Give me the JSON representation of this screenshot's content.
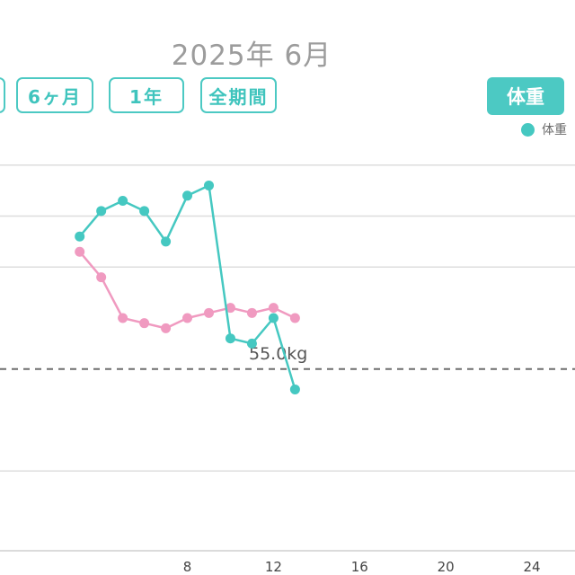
{
  "header": {
    "title": "2025年 6月"
  },
  "range_buttons": [
    "6ヶ月",
    "1年",
    "全期間"
  ],
  "metric_button": "体重",
  "legend": {
    "label": "体重",
    "color": "#45c8c1"
  },
  "chart_data": {
    "type": "line",
    "xlim": [
      -0.7,
      26.0
    ],
    "ylim": [
      52.0,
      60.0
    ],
    "x_ticks": [
      8,
      12,
      16,
      20,
      24
    ],
    "gridlines_y": [
      53.0,
      57.0,
      58.0,
      59.0
    ],
    "reference_line": {
      "value": 55.0,
      "label": "55.0kg"
    },
    "series": [
      {
        "name": "体重",
        "color": "#45c8c1",
        "points": [
          [
            3,
            57.6
          ],
          [
            4,
            58.1
          ],
          [
            5,
            58.3
          ],
          [
            6,
            58.1
          ],
          [
            7,
            57.5
          ],
          [
            8,
            58.4
          ],
          [
            9,
            58.6
          ],
          [
            10,
            55.6
          ],
          [
            11,
            55.5
          ],
          [
            12,
            56.0
          ],
          [
            13,
            54.6
          ]
        ]
      },
      {
        "color": "#f09ac0",
        "points": [
          [
            3,
            57.3
          ],
          [
            4,
            56.8
          ],
          [
            5,
            56.0
          ],
          [
            6,
            55.9
          ],
          [
            7,
            55.8
          ],
          [
            8,
            56.0
          ],
          [
            9,
            56.1
          ],
          [
            10,
            56.2
          ],
          [
            11,
            56.1
          ],
          [
            12,
            56.2
          ],
          [
            13,
            56.0
          ]
        ]
      }
    ]
  }
}
